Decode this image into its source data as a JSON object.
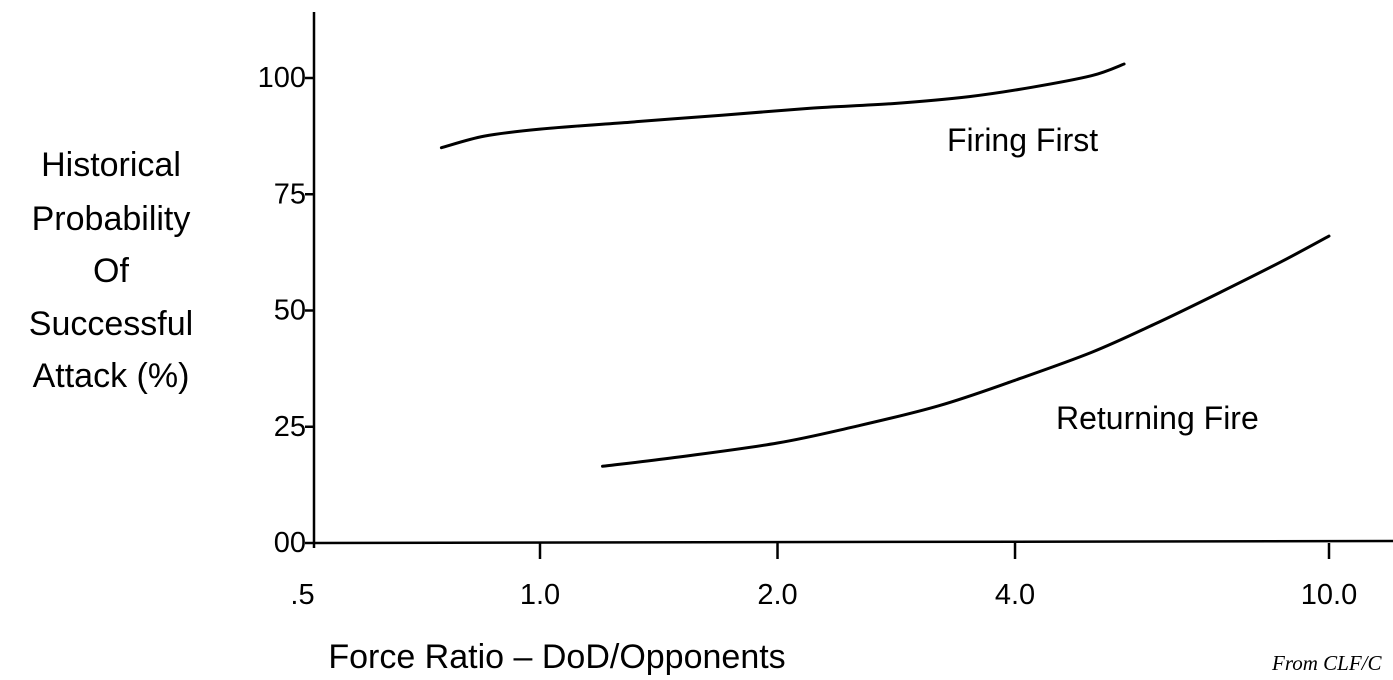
{
  "chart_data": {
    "type": "line",
    "xlabel": "Force Ratio – DoD/Opponents",
    "ylabel_lines": [
      "Historical",
      "Probability",
      "Of",
      "Successful",
      "Attack (%)"
    ],
    "x_scale": "log",
    "x_ticks": [
      {
        "value": 0.5,
        "label": ".5"
      },
      {
        "value": 1.0,
        "label": "1.0"
      },
      {
        "value": 2.0,
        "label": "2.0"
      },
      {
        "value": 4.0,
        "label": "4.0"
      },
      {
        "value": 10.0,
        "label": "10.0"
      }
    ],
    "y_ticks": [
      {
        "value": 0,
        "label": "00"
      },
      {
        "value": 25,
        "label": "25"
      },
      {
        "value": 50,
        "label": "50"
      },
      {
        "value": 75,
        "label": "75"
      },
      {
        "value": 100,
        "label": "100"
      }
    ],
    "ylim": [
      0,
      114
    ],
    "grid": false,
    "series": [
      {
        "name": "Firing First",
        "points": [
          {
            "x": 0.75,
            "y": 85
          },
          {
            "x": 0.85,
            "y": 87.5
          },
          {
            "x": 1.0,
            "y": 89
          },
          {
            "x": 1.3,
            "y": 90.5
          },
          {
            "x": 1.7,
            "y": 92
          },
          {
            "x": 2.2,
            "y": 93.5
          },
          {
            "x": 2.8,
            "y": 94.5
          },
          {
            "x": 3.5,
            "y": 96
          },
          {
            "x": 4.2,
            "y": 98
          },
          {
            "x": 5.0,
            "y": 100.5
          },
          {
            "x": 5.5,
            "y": 103
          }
        ]
      },
      {
        "name": "Returning Fire",
        "points": [
          {
            "x": 1.2,
            "y": 16.5
          },
          {
            "x": 1.5,
            "y": 18.5
          },
          {
            "x": 2.0,
            "y": 21.5
          },
          {
            "x": 2.5,
            "y": 25
          },
          {
            "x": 3.2,
            "y": 29.5
          },
          {
            "x": 4.0,
            "y": 35
          },
          {
            "x": 5.0,
            "y": 41
          },
          {
            "x": 6.0,
            "y": 47
          },
          {
            "x": 7.3,
            "y": 54
          },
          {
            "x": 8.7,
            "y": 60.5
          },
          {
            "x": 10.0,
            "y": 66
          }
        ]
      }
    ]
  },
  "credit": "From CLF/C"
}
